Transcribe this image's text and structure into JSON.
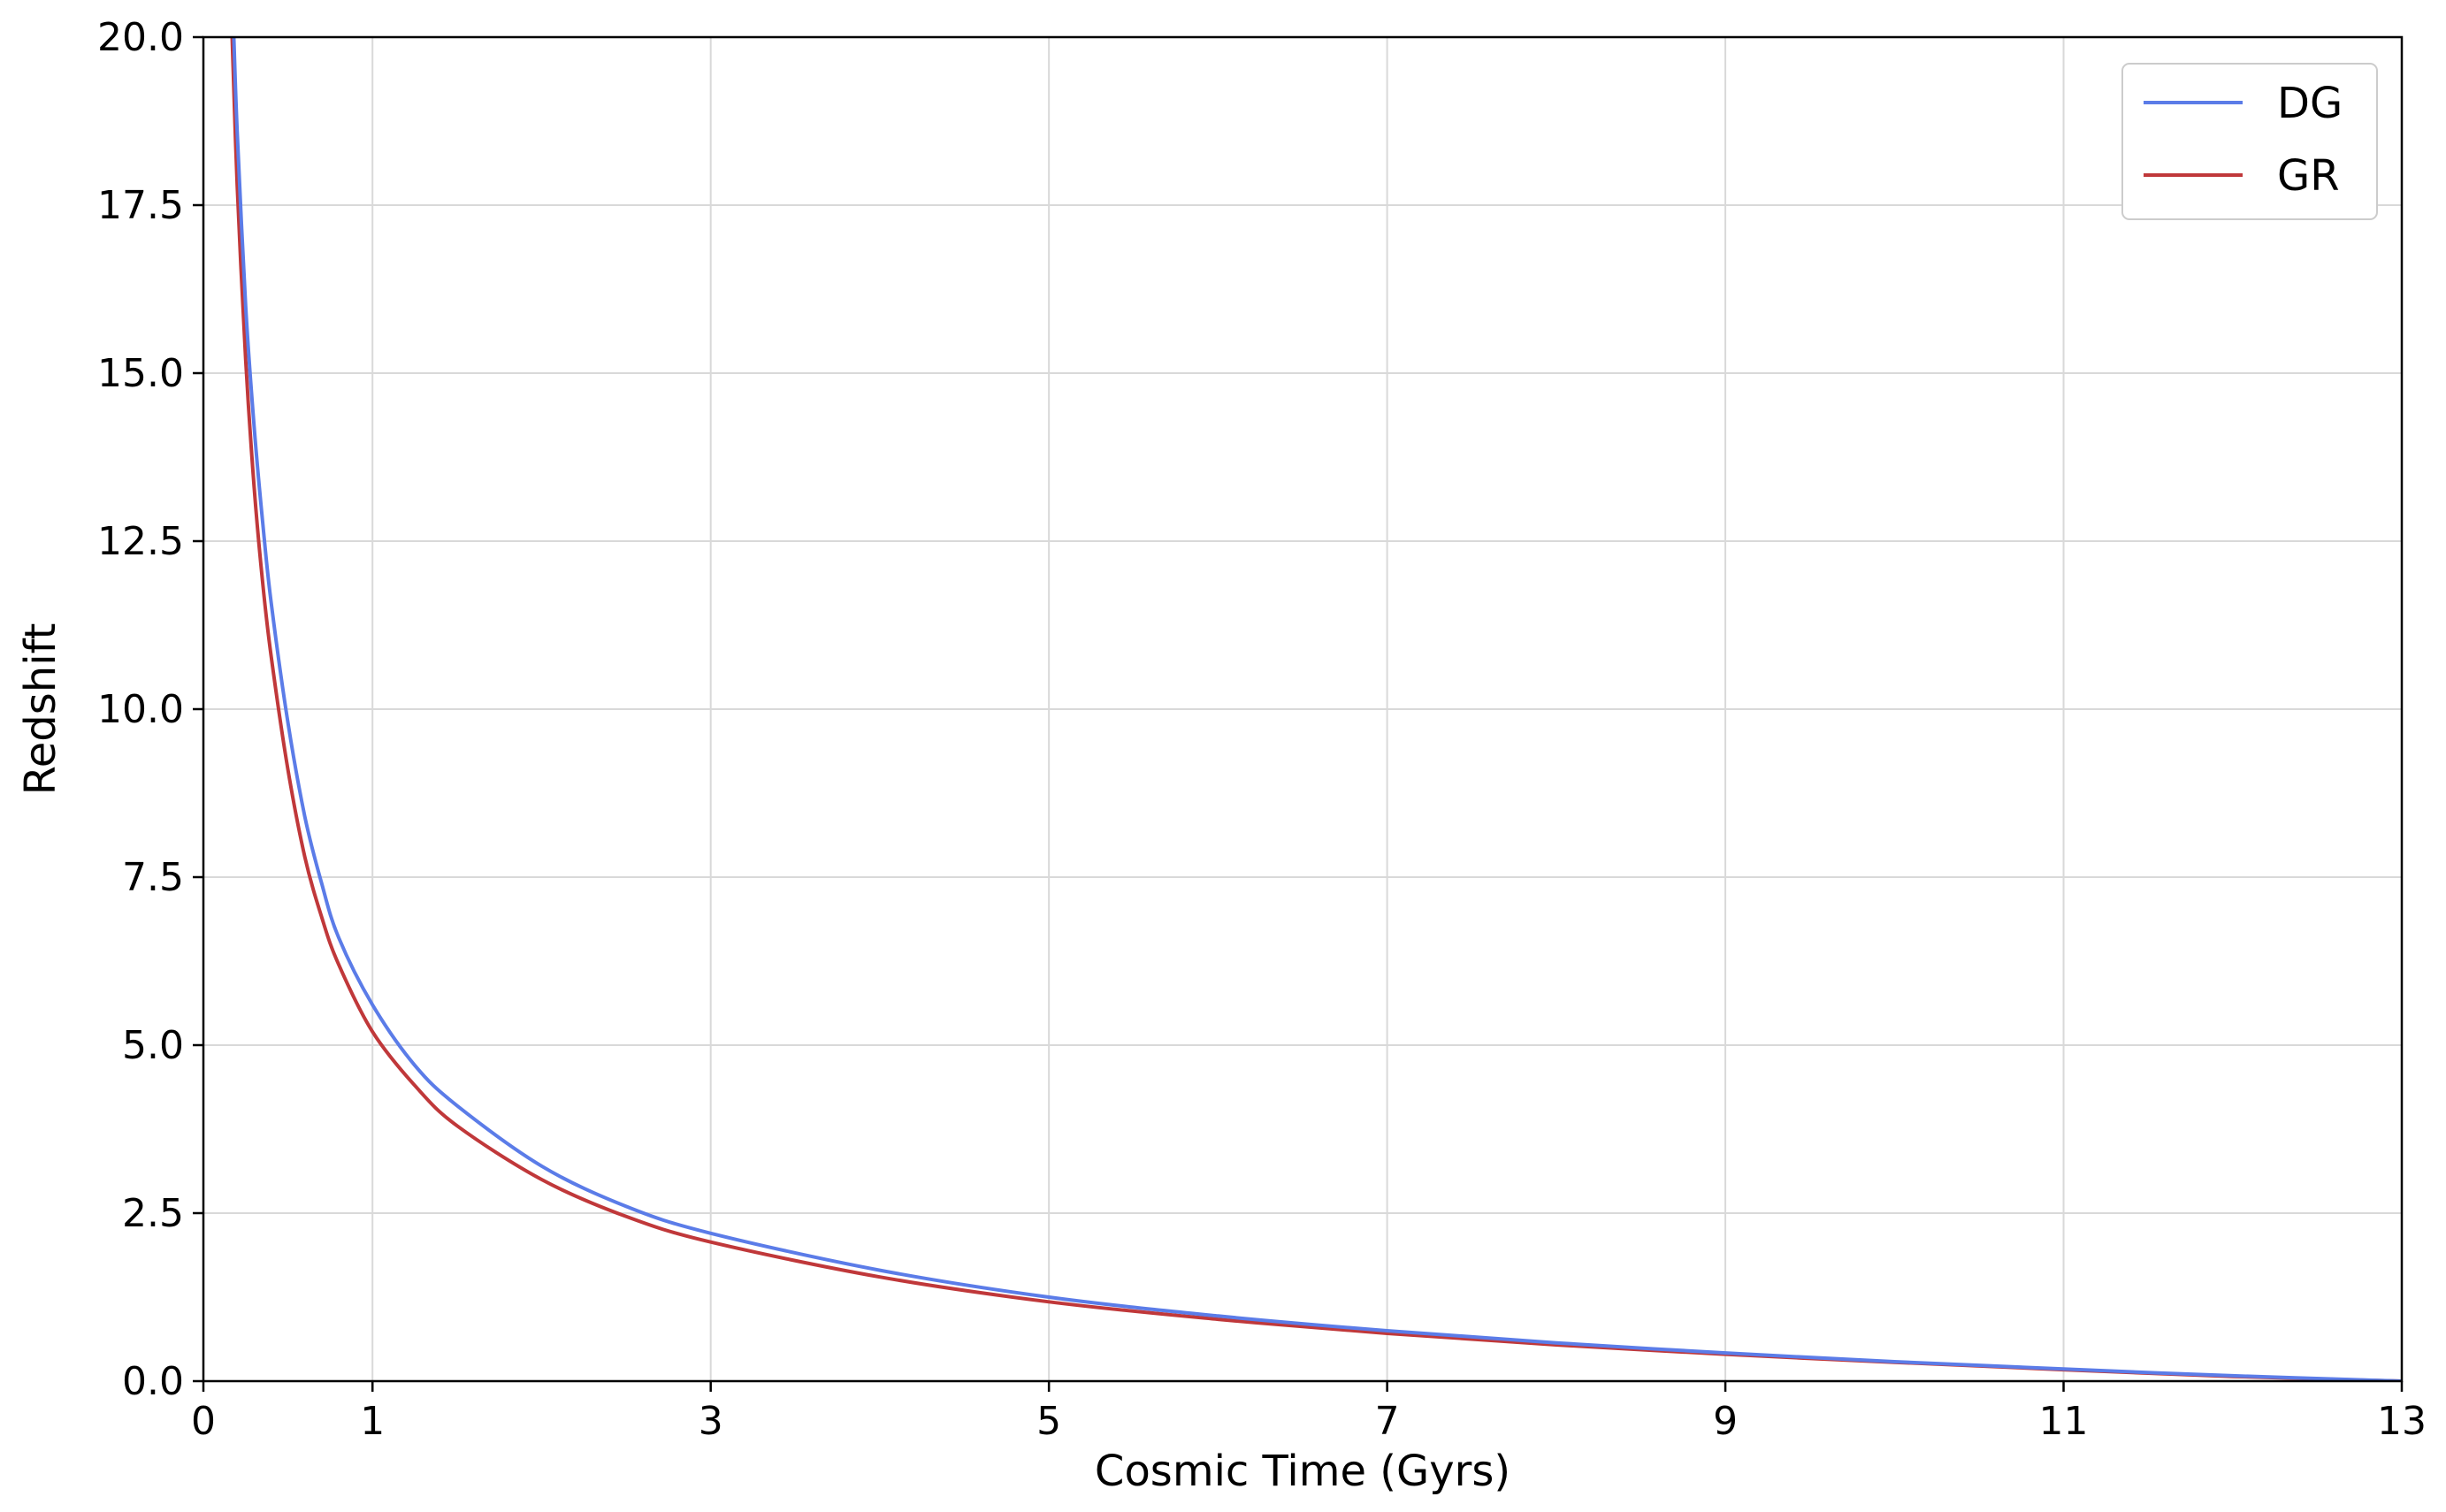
{
  "chart_data": {
    "type": "line",
    "xlabel": "Cosmic Time (Gyrs)",
    "ylabel": "Redshift",
    "xlim": [
      0,
      13
    ],
    "ylim": [
      0,
      20
    ],
    "xticks": [
      0,
      1,
      3,
      5,
      7,
      9,
      11,
      13
    ],
    "xtick_labels": [
      "0",
      "1",
      "3",
      "5",
      "7",
      "9",
      "11",
      "13"
    ],
    "yticks": [
      0,
      2.5,
      5,
      7.5,
      10,
      12.5,
      15,
      17.5,
      20
    ],
    "ytick_labels": [
      "0.0",
      "2.5",
      "5.0",
      "7.5",
      "10.0",
      "12.5",
      "15.0",
      "17.5",
      "20.0"
    ],
    "grid": true,
    "legend_position": "top-right",
    "series": [
      {
        "name": "DG",
        "color": "#5b7ce8",
        "x": [
          0.18,
          0.2,
          0.25,
          0.3,
          0.35,
          0.4,
          0.5,
          0.6,
          0.7,
          0.8,
          1.0,
          1.25,
          1.5,
          2.0,
          2.5,
          3.0,
          4.0,
          5.0,
          6.0,
          7.0,
          8.0,
          9.0,
          10.0,
          11.0,
          12.0,
          13.0
        ],
        "y": [
          20.0,
          18.6,
          16.0,
          14.2,
          12.8,
          11.6,
          9.8,
          8.4,
          7.4,
          6.6,
          5.6,
          4.7,
          4.1,
          3.2,
          2.6,
          2.2,
          1.65,
          1.25,
          0.97,
          0.75,
          0.57,
          0.42,
          0.29,
          0.18,
          0.08,
          0.0
        ]
      },
      {
        "name": "GR",
        "color": "#c0383a",
        "x": [
          0.17,
          0.2,
          0.25,
          0.3,
          0.35,
          0.4,
          0.5,
          0.6,
          0.7,
          0.8,
          1.0,
          1.25,
          1.5,
          2.0,
          2.5,
          3.0,
          4.0,
          5.0,
          6.0,
          7.0,
          8.0,
          9.0,
          10.0,
          11.0,
          12.0,
          13.0
        ],
        "y": [
          20.0,
          17.8,
          15.2,
          13.3,
          11.9,
          10.8,
          9.1,
          7.8,
          6.9,
          6.2,
          5.2,
          4.4,
          3.8,
          3.0,
          2.45,
          2.07,
          1.55,
          1.18,
          0.92,
          0.71,
          0.54,
          0.4,
          0.28,
          0.17,
          0.07,
          0.0
        ]
      }
    ]
  }
}
